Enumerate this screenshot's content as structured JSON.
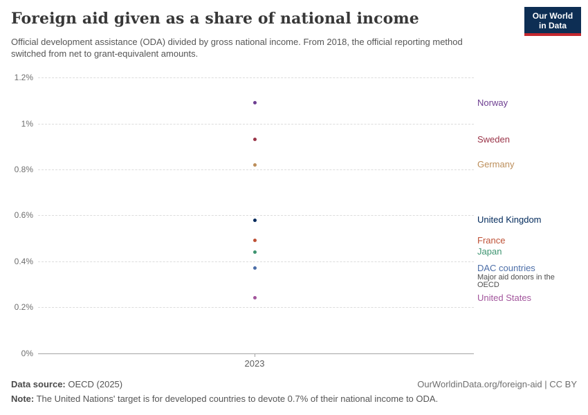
{
  "header": {
    "title": "Foreign aid given as a share of national income",
    "subtitle": "Official development assistance (ODA) divided by gross national income. From 2018, the official reporting method switched from net to grant-equivalent amounts.",
    "logo": {
      "line1": "Our World",
      "line2": "in Data",
      "bg_color": "#0d2e54",
      "accent_color": "#c4282f"
    }
  },
  "chart_data": {
    "type": "scatter",
    "title": "Foreign aid given as a share of national income",
    "unit": "%",
    "ylim": [
      0,
      1.2
    ],
    "grid": "horizontal-dashed",
    "legend_position": "right-labels",
    "x_ticks": [
      {
        "value": 2023,
        "label": "2023"
      }
    ],
    "y_ticks": [
      {
        "value": 1.2,
        "label": "1.2%"
      },
      {
        "value": 1.0,
        "label": "1%"
      },
      {
        "value": 0.8,
        "label": "0.8%"
      },
      {
        "value": 0.6,
        "label": "0.6%"
      },
      {
        "value": 0.4,
        "label": "0.4%"
      },
      {
        "value": 0.2,
        "label": "0.2%"
      },
      {
        "value": 0.0,
        "label": "0%"
      }
    ],
    "x": [
      2023
    ],
    "series": [
      {
        "name": "Norway",
        "values": [
          1.09
        ],
        "color": "#6D3E91"
      },
      {
        "name": "Sweden",
        "values": [
          0.93
        ],
        "color": "#9A3448"
      },
      {
        "name": "Germany",
        "values": [
          0.82
        ],
        "color": "#BC8E5A"
      },
      {
        "name": "United Kingdom",
        "values": [
          0.58
        ],
        "color": "#00295B"
      },
      {
        "name": "France",
        "values": [
          0.49
        ],
        "color": "#BE5035"
      },
      {
        "name": "Japan",
        "values": [
          0.44
        ],
        "color": "#3D9470"
      },
      {
        "name": "DAC countries",
        "values": [
          0.37
        ],
        "color": "#4C6EA8",
        "sublabel": "Major aid donors in the OECD"
      },
      {
        "name": "United States",
        "values": [
          0.24
        ],
        "color": "#A2559C"
      }
    ]
  },
  "footer": {
    "source_label": "Data source:",
    "source_value": " OECD (2025)",
    "attribution": "OurWorldinData.org/foreign-aid | CC BY",
    "note_label": "Note:",
    "note_value": " The United Nations' target is for developed countries to devote 0.7% of their national income to ODA."
  }
}
